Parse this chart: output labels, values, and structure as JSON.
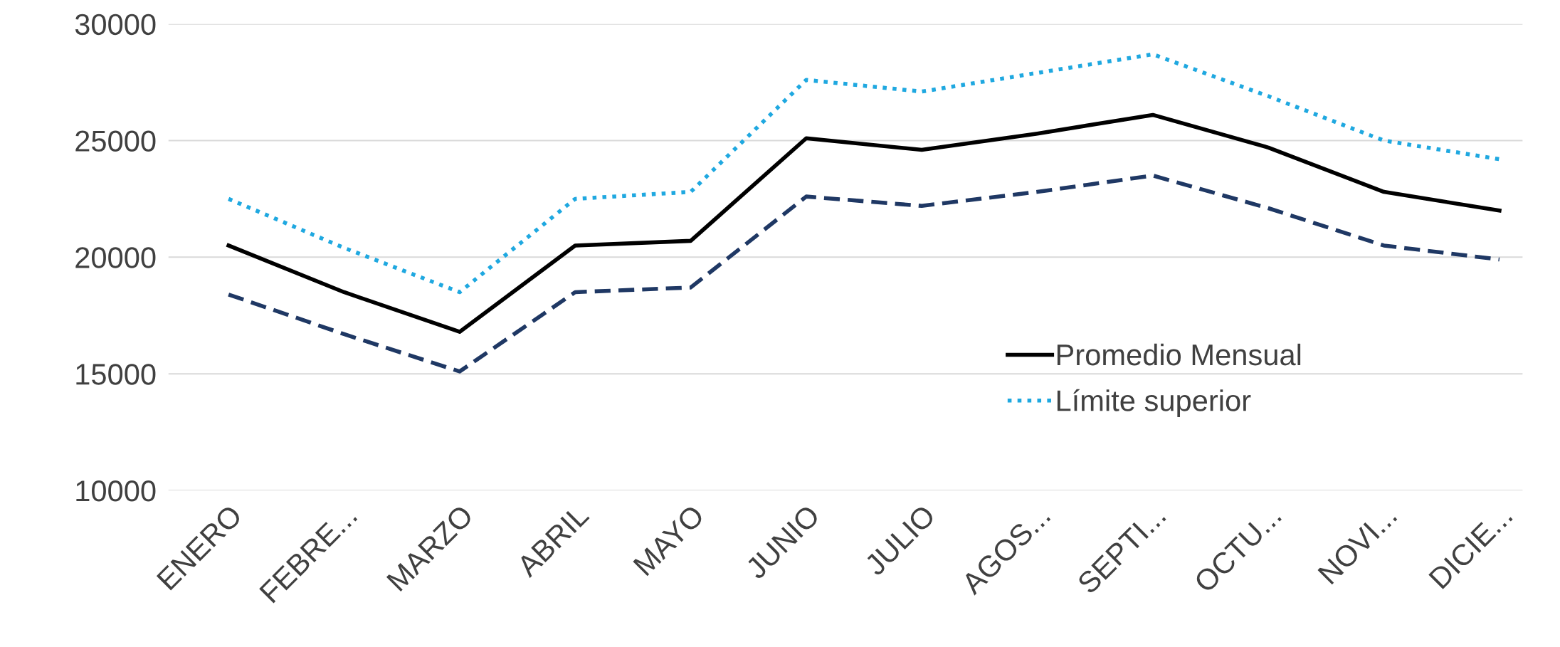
{
  "chart_data": {
    "type": "line",
    "categories": [
      "ENERO",
      "FEBRE...",
      "MARZO",
      "ABRIL",
      "MAYO",
      "JUNIO",
      "JULIO",
      "AGOS...",
      "SEPTI...",
      "OCTU...",
      "NOVI...",
      "DICIE..."
    ],
    "series": [
      {
        "name": "Promedio Mensual",
        "color": "#000000",
        "line_style": "solid",
        "values": [
          20500,
          18500,
          16800,
          20500,
          20700,
          25100,
          24600,
          25300,
          26100,
          24700,
          22800,
          22000
        ]
      },
      {
        "name": "Límite superior",
        "color": "#1fa8e0",
        "line_style": "dotted",
        "values": [
          22500,
          20400,
          18500,
          22500,
          22800,
          27600,
          27100,
          27900,
          28700,
          26900,
          25000,
          24200
        ]
      },
      {
        "color": "#1f3864",
        "line_style": "dashed",
        "values": [
          18400,
          16700,
          15100,
          18500,
          18700,
          22600,
          22200,
          22800,
          23500,
          22100,
          20500,
          19900
        ]
      }
    ],
    "ylim": [
      10000,
      30000
    ],
    "yticks": [
      10000,
      15000,
      20000,
      25000,
      30000
    ],
    "grid": "y",
    "legend": "right",
    "marker": "none"
  }
}
